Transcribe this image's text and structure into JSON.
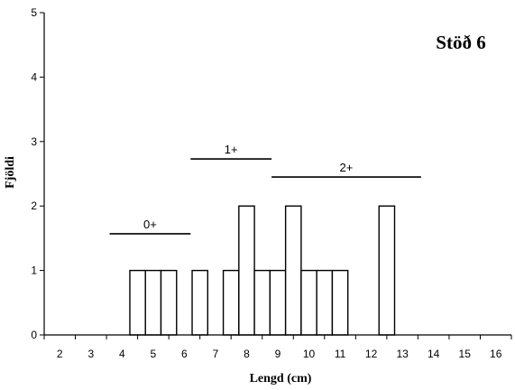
{
  "chart_data": {
    "type": "bar",
    "title": "Stöð 6",
    "xlabel": "Lengd (cm)",
    "ylabel": "Fjöldi",
    "xlim": [
      1.5,
      16.5
    ],
    "ylim": [
      0,
      5
    ],
    "x_ticks": [
      "2",
      "3",
      "4",
      "5",
      "6",
      "7",
      "8",
      "9",
      "10",
      "11",
      "12",
      "13",
      "14",
      "15",
      "16"
    ],
    "y_ticks": [
      "0",
      "1",
      "2",
      "3",
      "4",
      "5"
    ],
    "bin_width": 0.5,
    "bins": [
      {
        "x": 4.5,
        "count": 1
      },
      {
        "x": 5.0,
        "count": 1
      },
      {
        "x": 5.5,
        "count": 1
      },
      {
        "x": 6.5,
        "count": 1
      },
      {
        "x": 7.5,
        "count": 1
      },
      {
        "x": 8.0,
        "count": 2
      },
      {
        "x": 8.5,
        "count": 1
      },
      {
        "x": 9.0,
        "count": 1
      },
      {
        "x": 9.5,
        "count": 2
      },
      {
        "x": 10.0,
        "count": 1
      },
      {
        "x": 10.5,
        "count": 1
      },
      {
        "x": 11.0,
        "count": 1
      },
      {
        "x": 12.5,
        "count": 2
      }
    ],
    "age_groups": [
      {
        "label": "0+",
        "x_range": [
          3.6,
          6.2
        ],
        "y": 1.57
      },
      {
        "label": "1+",
        "x_range": [
          6.2,
          8.8
        ],
        "y": 2.73
      },
      {
        "label": "2+",
        "x_range": [
          8.8,
          13.6
        ],
        "y": 2.45
      }
    ]
  }
}
